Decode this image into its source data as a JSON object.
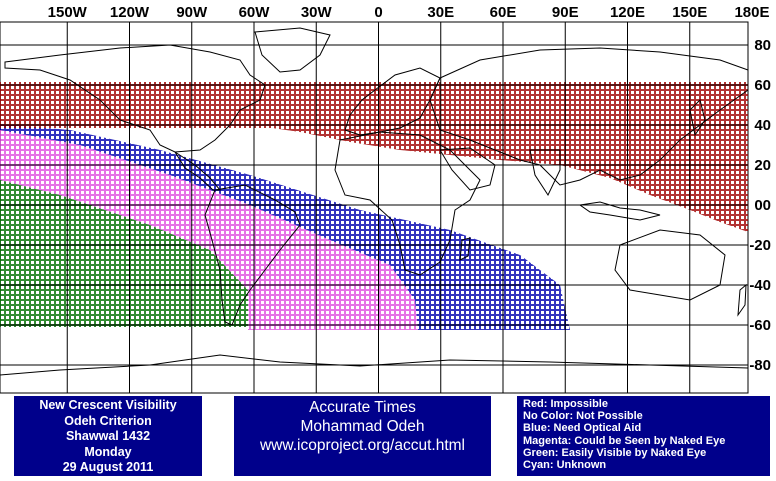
{
  "map": {
    "longitude_labels": [
      {
        "lon": -150,
        "text": "150W"
      },
      {
        "lon": -120,
        "text": "120W"
      },
      {
        "lon": -90,
        "text": "90W"
      },
      {
        "lon": -60,
        "text": "60W"
      },
      {
        "lon": -30,
        "text": "30W"
      },
      {
        "lon": 0,
        "text": "0"
      },
      {
        "lon": 30,
        "text": "30E"
      },
      {
        "lon": 60,
        "text": "60E"
      },
      {
        "lon": 90,
        "text": "90E"
      },
      {
        "lon": 120,
        "text": "120E"
      },
      {
        "lon": 150,
        "text": "150E"
      },
      {
        "lon": 180,
        "text": "180E"
      }
    ],
    "latitude_labels": [
      {
        "lat": 80,
        "text": "80"
      },
      {
        "lat": 60,
        "text": "60"
      },
      {
        "lat": 40,
        "text": "40"
      },
      {
        "lat": 20,
        "text": "20"
      },
      {
        "lat": 0,
        "text": "00"
      },
      {
        "lat": -20,
        "text": "-20"
      },
      {
        "lat": -40,
        "text": "-40"
      },
      {
        "lat": -60,
        "text": "-60"
      },
      {
        "lat": -80,
        "text": "-80"
      }
    ],
    "colors": {
      "red": "#a00000",
      "blue": "#0000b0",
      "magenta": "#e050e0",
      "green": "#007000",
      "grid": "#000000",
      "panel": "#00008b"
    }
  },
  "info_left": {
    "line1": "New Crescent Visibility",
    "line2": "Odeh Criterion",
    "line3": "Shawwal 1432",
    "line4": "Monday",
    "line5": "29 August 2011"
  },
  "info_center": {
    "line1": "Accurate Times",
    "line2": "Mohammad Odeh",
    "line3": "www.icoproject.org/accut.html"
  },
  "legend": {
    "red": "Red: Impossible",
    "none": "No Color: Not Possible",
    "blue": "Blue: Need Optical Aid",
    "magenta": "Magenta: Could be Seen by Naked Eye",
    "green": "Green: Easily Visible by Naked Eye",
    "cyan": "Cyan: Unknown"
  }
}
